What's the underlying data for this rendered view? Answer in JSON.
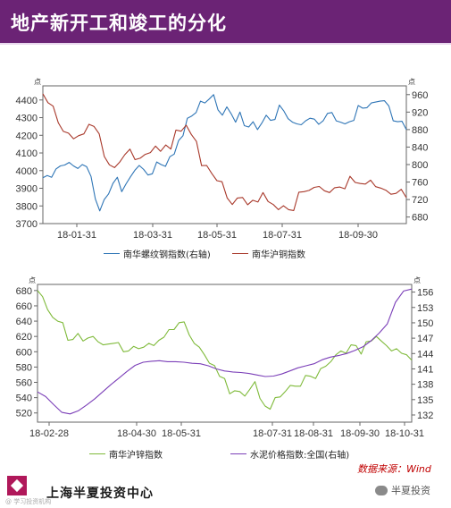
{
  "header": {
    "title": "地产新开工和竣工的分化"
  },
  "colors": {
    "header_bg": "#6b2375",
    "blue_series": "#2e75b6",
    "red_series": "#a8382a",
    "green_series": "#7fba3a",
    "purple_series": "#7b3fb8"
  },
  "chart_data": [
    {
      "type": "line",
      "unit_left": "点",
      "unit_right": "点",
      "x_ticks": [
        "18-01-31",
        "18-03-31",
        "18-05-31",
        "18-07-31",
        "18-09-30"
      ],
      "y_left": {
        "ticks": [
          3700,
          3800,
          3900,
          4000,
          4100,
          4200,
          4300,
          4400
        ],
        "lim": [
          3700,
          4480
        ]
      },
      "y_right": {
        "ticks": [
          680,
          720,
          760,
          800,
          840,
          880,
          920,
          960
        ],
        "lim": [
          665,
          980
        ]
      },
      "series": [
        {
          "name": "南华螺纹钢指数(右轴)",
          "axis": "right",
          "color": "#2e75b6",
          "values": [
            770,
            775,
            771,
            790,
            797,
            799,
            805,
            797,
            791,
            800,
            795,
            773,
            721,
            694,
            720,
            733,
            757,
            771,
            738,
            756,
            772,
            787,
            798,
            789,
            776,
            779,
            806,
            800,
            796,
            818,
            824,
            855,
            866,
            906,
            911,
            919,
            945,
            941,
            950,
            960,
            925,
            913,
            932,
            916,
            897,
            920,
            889,
            886,
            898,
            880,
            895,
            913,
            901,
            903,
            936,
            923,
            905,
            897,
            893,
            891,
            900,
            906,
            904,
            892,
            900,
            917,
            919,
            900,
            897,
            893,
            898,
            901,
            935,
            929,
            930,
            941,
            943,
            945,
            946,
            934,
            900,
            898,
            899,
            880
          ]
        },
        {
          "name": "南华沪铜指数",
          "axis": "left",
          "color": "#a8382a",
          "values": [
            4435,
            4385,
            4365,
            4272,
            4222,
            4212,
            4180,
            4198,
            4208,
            4262,
            4250,
            4208,
            4080,
            4033,
            4017,
            4048,
            4090,
            4122,
            4062,
            4070,
            4092,
            4102,
            4139,
            4109,
            4145,
            4122,
            4230,
            4223,
            4257,
            4205,
            4165,
            4028,
            4029,
            3983,
            3943,
            3937,
            3845,
            3808,
            3845,
            3848,
            3807,
            3832,
            3822,
            3876,
            3825,
            3808,
            3779,
            3801,
            3779,
            3774,
            3878,
            3881,
            3888,
            3905,
            3910,
            3886,
            3876,
            3903,
            3907,
            3897,
            3968,
            3933,
            3927,
            3924,
            3946,
            3909,
            3901,
            3889,
            3866,
            3871,
            3894,
            3847
          ]
        }
      ]
    },
    {
      "type": "line",
      "unit_left": "点",
      "unit_right": "点",
      "x_ticks": [
        "18-02-28",
        "18-04-30",
        "18-05-31",
        "18-07-31",
        "18-08-31",
        "18-09-30",
        "18-10-31"
      ],
      "y_left": {
        "ticks": [
          520,
          540,
          560,
          580,
          600,
          620,
          640,
          660,
          680
        ],
        "lim": [
          508,
          688
        ]
      },
      "y_right": {
        "ticks": [
          132,
          135,
          138,
          141,
          144,
          147,
          150,
          153,
          156
        ],
        "lim": [
          130.6,
          157.5
        ]
      },
      "series": [
        {
          "name": "南华沪锌指数",
          "axis": "left",
          "color": "#7fba3a",
          "values": [
            680,
            672,
            655,
            645,
            640,
            638,
            615,
            616,
            624,
            614,
            618,
            620,
            613,
            609,
            610,
            611,
            612,
            600,
            601,
            607,
            604,
            606,
            611,
            608,
            615,
            619,
            629,
            629,
            638,
            639,
            622,
            611,
            606,
            596,
            585,
            582,
            568,
            565,
            545,
            549,
            548,
            542,
            551,
            561,
            539,
            529,
            525,
            540,
            541,
            548,
            556,
            555,
            555,
            569,
            568,
            565,
            578,
            581,
            587,
            596,
            601,
            598,
            609,
            608,
            597,
            613,
            614,
            620,
            614,
            608,
            601,
            604,
            598,
            596,
            589
          ]
        },
        {
          "name": "水泥价格指数:全国(右轴)",
          "axis": "right",
          "color": "#7b3fb8",
          "values": [
            136.5,
            135.6,
            134.0,
            132.5,
            132.2,
            132.8,
            133.9,
            135.1,
            136.5,
            137.9,
            139.2,
            140.5,
            141.7,
            142.3,
            142.5,
            142.6,
            142.4,
            142.4,
            142.3,
            142.1,
            142.0,
            141.6,
            141.0,
            140.6,
            140.4,
            140.3,
            140.1,
            139.8,
            139.5,
            139.6,
            140.0,
            140.6,
            141.2,
            141.6,
            142.0,
            142.8,
            143.3,
            143.6,
            144.0,
            144.6,
            145.3,
            146.5,
            148.0,
            149.8,
            154.0,
            156.2,
            156.6
          ]
        }
      ]
    }
  ],
  "footer": {
    "source": "数据来源：Wind",
    "org": "上海半夏投资中心",
    "watermark": "@ 学习投资机构",
    "wechat": "半夏投资"
  }
}
